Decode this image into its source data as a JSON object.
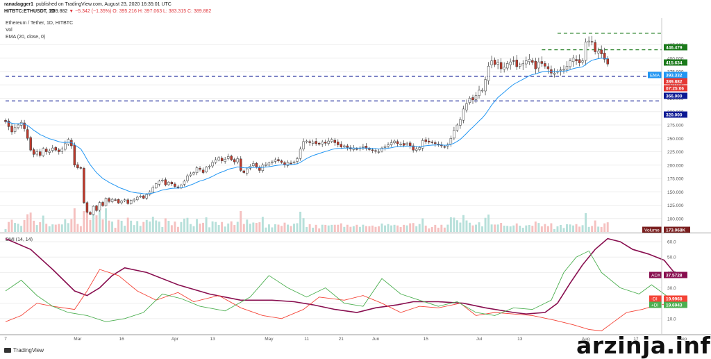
{
  "header": {
    "user": "ranadagger1",
    "published": "published on TradingView.com, August 23, 2020 16:35:01 UTC",
    "symbol": "HITBTC:ETHUSDT, 1D",
    "price": "389.882",
    "change": "▼ −5.342 (−1.35%)",
    "ohlc": "O: 395.216 H: 397.063 L: 383.315 C: 389.882"
  },
  "legend": {
    "pair": "Ethereum / Tether, 1D, HITBTC",
    "vol": "Vol",
    "ema": "EMA (20, close, 0)",
    "dmi": "DMI (14, 14)"
  },
  "footer": {
    "logo": "TradingView"
  },
  "watermark": "arzinja.info",
  "colors": {
    "up": "#26a69a",
    "down": "#ef5350",
    "ema": "#2196f3",
    "adx": "#880e4f",
    "plus_di": "#4caf50",
    "minus_di": "#f44336",
    "levels": "#0d1a94",
    "targets": "#1b7a1b"
  },
  "chart_data": [
    {
      "type": "candlestick",
      "title": "Ethereum / Tether, 1D, HITBTC",
      "ylim": [
        75,
        475
      ],
      "y_ticks": [
        100.0,
        125.0,
        150.0,
        175.0,
        200.0,
        225.0,
        250.0,
        275.0,
        300.0,
        325.0,
        350.0,
        375.0,
        400.0,
        425.0
      ],
      "x_ticks": [
        {
          "i": 0,
          "label": "7"
        },
        {
          "i": 23,
          "label": "Mar"
        },
        {
          "i": 37,
          "label": "16"
        },
        {
          "i": 54,
          "label": "Apr"
        },
        {
          "i": 66,
          "label": "13"
        },
        {
          "i": 84,
          "label": "May"
        },
        {
          "i": 96,
          "label": "11"
        },
        {
          "i": 107,
          "label": "21"
        },
        {
          "i": 118,
          "label": "Jun"
        },
        {
          "i": 134,
          "label": "15"
        },
        {
          "i": 151,
          "label": "Jul"
        },
        {
          "i": 164,
          "label": "13"
        },
        {
          "i": 185,
          "label": "Aug"
        },
        {
          "i": 201,
          "label": "17"
        },
        {
          "i": 216,
          "label": "Sep"
        }
      ],
      "close": [
        281,
        272,
        262,
        270,
        275,
        280,
        268,
        250,
        228,
        220,
        225,
        218,
        231,
        225,
        226,
        232,
        228,
        225,
        230,
        240,
        248,
        236,
        200,
        195,
        194,
        130,
        112,
        108,
        123,
        115,
        130,
        124,
        138,
        132,
        136,
        135,
        129,
        133,
        135,
        128,
        134,
        136,
        140,
        142,
        138,
        145,
        150,
        158,
        165,
        170,
        172,
        163,
        168,
        165,
        160,
        158,
        163,
        170,
        180,
        183,
        186,
        195,
        192,
        186,
        196,
        198,
        205,
        210,
        214,
        208,
        211,
        216,
        210,
        206,
        212,
        190,
        186,
        193,
        198,
        203,
        196,
        190,
        200,
        201,
        204,
        206,
        210,
        208,
        205,
        200,
        205,
        203,
        206,
        212,
        230,
        244,
        245,
        242,
        243,
        240,
        239,
        243,
        241,
        245,
        248,
        242,
        238,
        234,
        236,
        233,
        230,
        232,
        230,
        232,
        235,
        231,
        229,
        228,
        226,
        225,
        232,
        235,
        238,
        242,
        245,
        240,
        239,
        237,
        241,
        236,
        228,
        230,
        233,
        246,
        244,
        243,
        242,
        240,
        239,
        236,
        234,
        238,
        250,
        265,
        275,
        285,
        305,
        315,
        325,
        322,
        330,
        340,
        340,
        360,
        385,
        395,
        388,
        392,
        380,
        383,
        390,
        393,
        395,
        384,
        387,
        390,
        395,
        398,
        392,
        380,
        393,
        390,
        385,
        380,
        372,
        372,
        375,
        378,
        379,
        385,
        395,
        400,
        395,
        391,
        395,
        430,
        432,
        431,
        412,
        413,
        408,
        398,
        389
      ],
      "series": [
        {
          "name": "EMA",
          "value": "393.332"
        },
        {
          "name": "Vol",
          "value": "173.068K"
        }
      ],
      "price_labels": [
        {
          "price": 446.479,
          "label": "446.479",
          "color": "#1b7a1b"
        },
        {
          "price": 415.634,
          "label": "415.634",
          "color": "#1b7a1b"
        },
        {
          "price": 393.332,
          "label": "393.332",
          "tag": "EMA",
          "color": "#2196f3"
        },
        {
          "price": 389.882,
          "label": "389.882",
          "color": "#e53935"
        },
        {
          "label": "07:25:06",
          "color": "#e53935"
        },
        {
          "price": 366.0,
          "label": "366.000",
          "color": "#0d1a94"
        },
        {
          "price": 320.0,
          "label": "320.000",
          "color": "#0d1a94"
        }
      ],
      "horizontal_lines": [
        {
          "price": 446.479,
          "style": "dashed",
          "color": "#1b7a1b",
          "from_index": 176
        },
        {
          "price": 415.634,
          "style": "dashed",
          "color": "#1b7a1b",
          "from_index": 171
        },
        {
          "price": 366.0,
          "style": "dashed",
          "color": "#0d1a94",
          "from_index": 0
        },
        {
          "price": 320.0,
          "style": "dashed",
          "color": "#0d1a94",
          "from_index": 0
        }
      ],
      "volume_label": {
        "tag": "Volume",
        "value": "173.068K"
      }
    },
    {
      "type": "line",
      "title": "DMI (14, 14)",
      "ylim": [
        0,
        65
      ],
      "y_ticks": [
        10.0,
        20.0,
        30.0,
        40.0,
        50.0,
        60.0
      ],
      "series": [
        {
          "name": "ADX",
          "value": "37.5728",
          "color": "#880e4f",
          "points": [
            [
              0,
              62
            ],
            [
              8,
              55
            ],
            [
              15,
              42
            ],
            [
              22,
              28
            ],
            [
              26,
              25
            ],
            [
              30,
              30
            ],
            [
              34,
              38
            ],
            [
              38,
              43
            ],
            [
              45,
              40
            ],
            [
              55,
              32
            ],
            [
              65,
              26
            ],
            [
              75,
              22
            ],
            [
              85,
              22
            ],
            [
              92,
              21
            ],
            [
              98,
              19
            ],
            [
              105,
              16
            ],
            [
              112,
              14
            ],
            [
              118,
              17
            ],
            [
              125,
              19
            ],
            [
              130,
              21
            ],
            [
              138,
              21
            ],
            [
              146,
              20
            ],
            [
              153,
              17
            ],
            [
              162,
              14
            ],
            [
              166,
              13
            ],
            [
              172,
              14
            ],
            [
              176,
              20
            ],
            [
              180,
              33
            ],
            [
              184,
              45
            ],
            [
              188,
              55
            ],
            [
              192,
              62
            ],
            [
              196,
              60
            ],
            [
              200,
              55
            ],
            [
              205,
              52
            ],
            [
              210,
              48
            ],
            [
              214,
              38
            ]
          ]
        },
        {
          "name": "-DI",
          "value": "19.9968",
          "color": "#f44336",
          "points": [
            [
              0,
              8
            ],
            [
              5,
              12
            ],
            [
              10,
              20
            ],
            [
              15,
              18
            ],
            [
              22,
              16
            ],
            [
              26,
              28
            ],
            [
              30,
              42
            ],
            [
              36,
              38
            ],
            [
              42,
              28
            ],
            [
              48,
              22
            ],
            [
              55,
              27
            ],
            [
              60,
              21
            ],
            [
              68,
              25
            ],
            [
              75,
              17
            ],
            [
              82,
              12
            ],
            [
              88,
              10
            ],
            [
              95,
              16
            ],
            [
              100,
              24
            ],
            [
              108,
              22
            ],
            [
              114,
              25
            ],
            [
              120,
              20
            ],
            [
              126,
              14
            ],
            [
              132,
              18
            ],
            [
              138,
              17
            ],
            [
              145,
              20
            ],
            [
              150,
              12
            ],
            [
              156,
              14
            ],
            [
              162,
              13
            ],
            [
              168,
              12
            ],
            [
              175,
              9
            ],
            [
              181,
              6
            ],
            [
              186,
              3
            ],
            [
              190,
              2
            ],
            [
              194,
              8
            ],
            [
              198,
              14
            ],
            [
              203,
              16
            ],
            [
              208,
              19
            ],
            [
              214,
              20
            ]
          ]
        },
        {
          "name": "+DI",
          "value": "19.6943",
          "color": "#4caf50",
          "points": [
            [
              0,
              28
            ],
            [
              5,
              35
            ],
            [
              10,
              25
            ],
            [
              15,
              18
            ],
            [
              20,
              14
            ],
            [
              26,
              12
            ],
            [
              32,
              8
            ],
            [
              38,
              10
            ],
            [
              44,
              14
            ],
            [
              50,
              26
            ],
            [
              56,
              23
            ],
            [
              62,
              18
            ],
            [
              70,
              15
            ],
            [
              78,
              24
            ],
            [
              84,
              38
            ],
            [
              90,
              30
            ],
            [
              96,
              24
            ],
            [
              102,
              30
            ],
            [
              108,
              20
            ],
            [
              114,
              18
            ],
            [
              120,
              36
            ],
            [
              126,
              26
            ],
            [
              132,
              22
            ],
            [
              138,
              18
            ],
            [
              144,
              21
            ],
            [
              150,
              14
            ],
            [
              156,
              12
            ],
            [
              162,
              17
            ],
            [
              168,
              16
            ],
            [
              174,
              22
            ],
            [
              178,
              40
            ],
            [
              182,
              50
            ],
            [
              186,
              54
            ],
            [
              190,
              40
            ],
            [
              196,
              30
            ],
            [
              202,
              26
            ],
            [
              206,
              32
            ],
            [
              210,
              26
            ],
            [
              214,
              20
            ]
          ]
        }
      ]
    }
  ]
}
